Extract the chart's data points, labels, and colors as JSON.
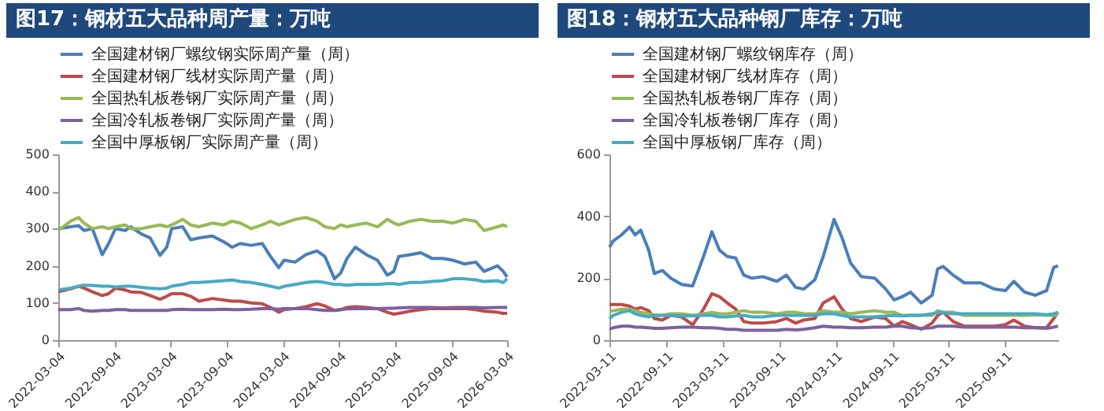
{
  "chart_data": [
    {
      "type": "line",
      "title": "图17：钢材五大品种周产量：万吨",
      "legend": "top",
      "grid": false,
      "x": [
        "2022-03-04",
        "2022-04-13",
        "2022-05-09",
        "2022-05-27",
        "2022-06-23",
        "2022-07-25",
        "2022-08-15",
        "2022-09-06",
        "2022-10-08",
        "2022-10-26",
        "2022-12-01",
        "2022-12-28",
        "2023-01-29",
        "2023-02-20",
        "2023-03-08",
        "2023-04-13",
        "2023-05-09",
        "2023-06-05",
        "2023-07-19",
        "2023-08-24",
        "2023-09-21",
        "2023-10-17",
        "2023-11-22",
        "2023-12-28",
        "2024-01-24",
        "2024-02-20",
        "2024-03-08",
        "2024-04-13",
        "2024-05-18",
        "2024-06-23",
        "2024-07-19",
        "2024-08-19",
        "2024-09-08",
        "2024-09-29",
        "2024-10-26",
        "2024-12-01",
        "2025-01-06",
        "2025-02-07",
        "2025-02-28",
        "2025-03-16",
        "2025-04-22",
        "2025-05-27",
        "2025-07-02",
        "2025-08-07",
        "2025-09-08",
        "2025-10-17",
        "2025-11-22",
        "2025-12-19",
        "2026-02-01",
        "2026-02-19",
        "2026-03-04"
      ],
      "xlim": [
        "2022-03-04",
        "2026-03-04"
      ],
      "xticks": [
        "2022-03-04",
        "2022-09-04",
        "2023-03-04",
        "2023-09-04",
        "2024-03-04",
        "2024-09-04",
        "2025-03-04",
        "2025-09-04",
        "2026-03-04"
      ],
      "ylim": [
        0,
        500
      ],
      "yticks": [
        0,
        100,
        200,
        300,
        400,
        500
      ],
      "series": [
        {
          "name": "全国建材钢厂螺纹钢实际周产量（周）",
          "color": "#4a7ebb",
          "values": [
            300,
            305,
            308,
            295,
            300,
            230,
            260,
            300,
            295,
            305,
            285,
            275,
            228,
            250,
            300,
            305,
            270,
            275,
            280,
            265,
            250,
            260,
            255,
            260,
            225,
            195,
            215,
            210,
            230,
            240,
            225,
            165,
            180,
            220,
            250,
            230,
            215,
            175,
            185,
            225,
            230,
            235,
            220,
            220,
            215,
            205,
            210,
            185,
            200,
            185,
            170
          ]
        },
        {
          "name": "全国建材钢厂线材实际周产量（周）",
          "color": "#be4b48",
          "values": [
            130,
            138,
            145,
            140,
            130,
            120,
            125,
            140,
            135,
            130,
            128,
            120,
            110,
            118,
            125,
            125,
            118,
            105,
            112,
            108,
            105,
            105,
            100,
            98,
            88,
            75,
            82,
            85,
            90,
            98,
            92,
            80,
            82,
            88,
            90,
            88,
            85,
            75,
            70,
            72,
            78,
            82,
            85,
            85,
            85,
            85,
            82,
            78,
            75,
            72,
            72
          ]
        },
        {
          "name": "全国热轧板卷钢厂实际周产量（周）",
          "color": "#98b954",
          "values": [
            295,
            320,
            330,
            315,
            300,
            305,
            300,
            305,
            310,
            300,
            300,
            305,
            310,
            305,
            310,
            325,
            310,
            305,
            315,
            310,
            320,
            315,
            300,
            310,
            320,
            310,
            315,
            325,
            330,
            320,
            305,
            300,
            310,
            305,
            310,
            315,
            305,
            325,
            315,
            310,
            320,
            325,
            320,
            320,
            315,
            325,
            320,
            295,
            305,
            310,
            305
          ]
        },
        {
          "name": "全国冷轧板卷钢厂实际周产量（周）",
          "color": "#7d60a0",
          "values": [
            82,
            82,
            85,
            80,
            78,
            80,
            80,
            82,
            82,
            80,
            80,
            80,
            80,
            80,
            82,
            83,
            82,
            82,
            82,
            83,
            82,
            82,
            83,
            85,
            85,
            83,
            85,
            85,
            85,
            82,
            80,
            80,
            82,
            84,
            85,
            85,
            85,
            86,
            86,
            87,
            88,
            88,
            88,
            87,
            88,
            88,
            88,
            87,
            88,
            88,
            88
          ]
        },
        {
          "name": "全国中厚板钢厂实际周产量（周）",
          "color": "#46aac5",
          "values": [
            135,
            140,
            145,
            148,
            147,
            145,
            145,
            143,
            145,
            145,
            142,
            140,
            138,
            140,
            145,
            150,
            155,
            155,
            158,
            160,
            162,
            158,
            155,
            150,
            145,
            140,
            145,
            150,
            155,
            158,
            155,
            150,
            150,
            148,
            150,
            150,
            150,
            152,
            152,
            150,
            155,
            155,
            158,
            160,
            165,
            165,
            162,
            158,
            160,
            155,
            165
          ]
        }
      ]
    },
    {
      "type": "line",
      "title": "图18：钢材五大品种钢厂库存：万吨",
      "legend": "top",
      "grid": false,
      "x": [
        "2022-03-11",
        "2022-03-23",
        "2022-04-19",
        "2022-05-15",
        "2022-06-02",
        "2022-06-20",
        "2022-07-16",
        "2022-08-03",
        "2022-08-29",
        "2022-09-25",
        "2022-10-30",
        "2022-12-05",
        "2023-01-09",
        "2023-02-05",
        "2023-03-02",
        "2023-03-27",
        "2023-04-23",
        "2023-05-19",
        "2023-06-15",
        "2023-07-20",
        "2023-09-03",
        "2023-10-04",
        "2023-11-03",
        "2023-11-29",
        "2024-01-04",
        "2024-01-31",
        "2024-03-06",
        "2024-04-01",
        "2024-04-28",
        "2024-06-02",
        "2024-07-16",
        "2024-08-20",
        "2024-09-16",
        "2024-10-12",
        "2024-11-08",
        "2024-12-13",
        "2025-01-17",
        "2025-02-04",
        "2025-02-22",
        "2025-03-26",
        "2025-05-01",
        "2025-06-23",
        "2025-08-06",
        "2025-09-11",
        "2025-10-08",
        "2025-11-12",
        "2025-12-17",
        "2026-01-22",
        "2026-02-14",
        "2026-02-28"
      ],
      "xlim": [
        "2022-03-11",
        "2026-03-01"
      ],
      "xticks": [
        "2022-03-11",
        "2022-09-11",
        "2023-03-11",
        "2023-09-11",
        "2024-03-11",
        "2024-09-11",
        "2025-03-11",
        "2025-09-11"
      ],
      "ylim": [
        0,
        600
      ],
      "yticks": [
        0,
        200,
        400,
        600
      ],
      "series": [
        {
          "name": "全国建材钢厂螺纹钢库存（周）",
          "color": "#4a7ebb",
          "values": [
            300,
            320,
            340,
            365,
            340,
            355,
            290,
            215,
            225,
            200,
            180,
            175,
            270,
            350,
            290,
            270,
            265,
            210,
            200,
            205,
            190,
            210,
            170,
            165,
            195,
            270,
            390,
            330,
            250,
            205,
            200,
            165,
            130,
            140,
            155,
            120,
            145,
            230,
            238,
            210,
            185,
            185,
            165,
            160,
            190,
            155,
            145,
            160,
            235,
            240
          ]
        },
        {
          "name": "全国建材钢厂线材库存（周）",
          "color": "#be4b48",
          "values": [
            115,
            115,
            115,
            110,
            100,
            105,
            95,
            70,
            65,
            80,
            75,
            50,
            100,
            150,
            140,
            120,
            100,
            60,
            55,
            55,
            60,
            70,
            55,
            65,
            70,
            120,
            140,
            100,
            70,
            60,
            75,
            70,
            45,
            60,
            50,
            35,
            55,
            80,
            90,
            60,
            45,
            45,
            45,
            50,
            65,
            45,
            40,
            40,
            70,
            90
          ]
        },
        {
          "name": "全国热轧板卷钢厂库存（周）",
          "color": "#98b954",
          "values": [
            95,
            95,
            100,
            100,
            95,
            90,
            85,
            80,
            80,
            85,
            85,
            80,
            85,
            90,
            85,
            85,
            90,
            95,
            90,
            90,
            85,
            90,
            90,
            85,
            85,
            95,
            90,
            90,
            85,
            90,
            95,
            90,
            90,
            80,
            80,
            80,
            80,
            95,
            90,
            90,
            80,
            80,
            80,
            80,
            80,
            80,
            82,
            80,
            80,
            85
          ]
        },
        {
          "name": "全国冷轧板卷钢厂库存（周）",
          "color": "#7d60a0",
          "values": [
            35,
            40,
            45,
            45,
            42,
            42,
            40,
            38,
            38,
            40,
            42,
            42,
            40,
            40,
            38,
            35,
            35,
            32,
            32,
            32,
            32,
            35,
            33,
            35,
            40,
            45,
            42,
            42,
            40,
            40,
            42,
            42,
            45,
            45,
            40,
            38,
            40,
            45,
            45,
            45,
            42,
            42,
            42,
            42,
            42,
            40,
            40,
            38,
            42,
            45
          ]
        },
        {
          "name": "全国中厚板钢厂库存（周）",
          "color": "#46aac5",
          "values": [
            70,
            80,
            90,
            95,
            85,
            80,
            75,
            80,
            80,
            80,
            78,
            78,
            80,
            80,
            75,
            75,
            78,
            80,
            75,
            75,
            80,
            80,
            80,
            80,
            80,
            85,
            85,
            80,
            75,
            75,
            75,
            78,
            80,
            78,
            80,
            80,
            85,
            90,
            88,
            85,
            85,
            85,
            85,
            85,
            85,
            85,
            85,
            82,
            85,
            90
          ]
        }
      ]
    }
  ]
}
